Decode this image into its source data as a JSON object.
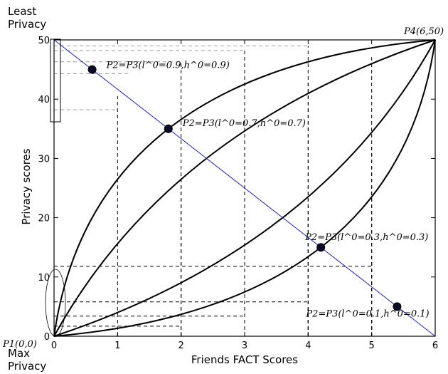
{
  "chart_data": {
    "type": "line",
    "title": "",
    "xlabel": "Friends FACT Scores",
    "ylabel": "Privacy scores",
    "xlim": [
      0,
      6
    ],
    "ylim": [
      0,
      50
    ],
    "xticks": [
      "0",
      "1",
      "2",
      "3",
      "4",
      "5",
      "6"
    ],
    "yticks": [
      "0",
      "10",
      "20",
      "30",
      "40",
      "50"
    ],
    "grid": false,
    "top_label": [
      "Least",
      "Privacy"
    ],
    "bottom_label": [
      "Max",
      "Privacy"
    ],
    "endpoints": {
      "start": {
        "label": "P1(0,0)",
        "x": 0,
        "y": 0
      },
      "end": {
        "label": "P4(6,50)",
        "x": 6,
        "y": 50
      }
    },
    "diagonal": {
      "x": [
        0,
        6
      ],
      "y": [
        50,
        0
      ],
      "color": "#1f1fb4"
    },
    "curves": [
      {
        "control": {
          "x": 0.6,
          "y": 45
        },
        "label": "P2=P3(l^0=0.9,h^0=0.9)"
      },
      {
        "control": {
          "x": 1.8,
          "y": 35
        },
        "label": "P2=P3(l^0=0.7,h^0=0.7)"
      },
      {
        "control": {
          "x": 4.2,
          "y": 15
        },
        "label": "P2=P3(l^0=0.3,h^0=0.3)"
      },
      {
        "control": {
          "x": 5.4,
          "y": 5
        },
        "label": "P2=P3(l^0=0.1,h^0=0.1)"
      }
    ],
    "marker_color": "#0a0a2a",
    "vertical_guides": [
      {
        "x": 1,
        "y_top": 40.5
      },
      {
        "x": 2,
        "y_top": 46.3
      },
      {
        "x": 3,
        "y_top": 48.2
      },
      {
        "x": 4,
        "y_top": 49.0
      }
    ],
    "vertical_guides_2": [
      {
        "x": 2,
        "y_top": 27.2
      },
      {
        "x": 3,
        "y_top": 37.4
      },
      {
        "x": 4,
        "y_top": 43.3
      },
      {
        "x": 5,
        "y_top": 47.1
      }
    ],
    "vertical_guides_3": [
      {
        "x": 3,
        "y_top": 12.6
      },
      {
        "x": 4,
        "y_top": 21.6
      },
      {
        "x": 5,
        "y_top": 32.3
      }
    ],
    "vertical_guides_4": [
      {
        "x": 4,
        "y_top": 5.2
      },
      {
        "x": 5,
        "y_top": 13.0
      }
    ],
    "horizontal_guides": [
      {
        "y": 49.0,
        "x_right": 4
      },
      {
        "y": 48.2,
        "x_right": 3
      },
      {
        "y": 46.3,
        "x_right": 2
      },
      {
        "y": 44.3,
        "x_right": 1.2
      },
      {
        "y": 38.2,
        "x_right": 1
      },
      {
        "y": 11.8,
        "x_right": 5
      },
      {
        "y": 5.8,
        "x_right": 4
      },
      {
        "y": 3.4,
        "x_right": 3
      },
      {
        "y": 1.7,
        "x_right": 2
      }
    ]
  }
}
